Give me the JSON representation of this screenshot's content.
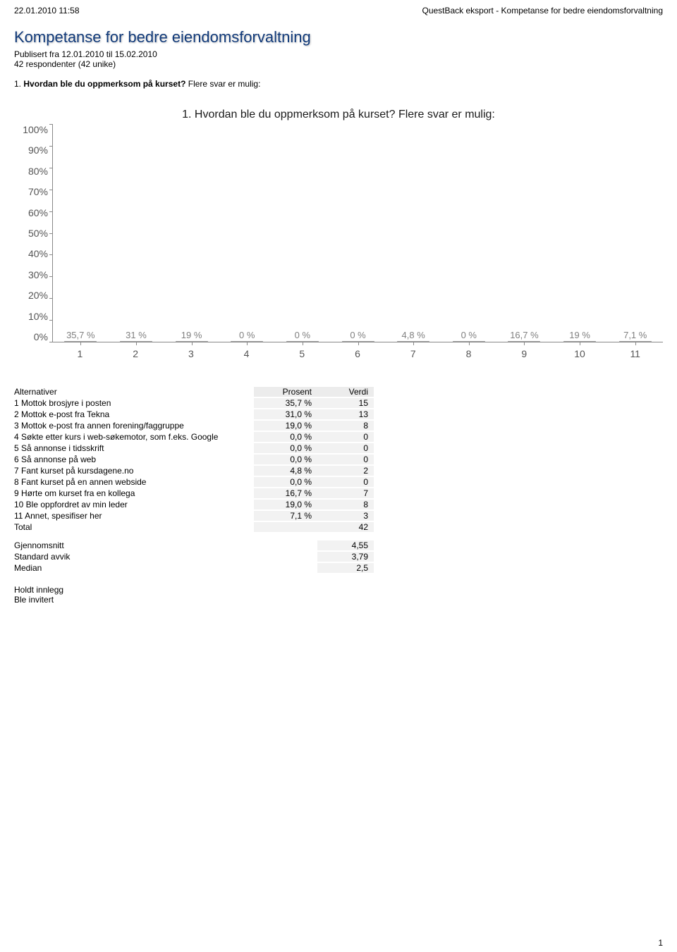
{
  "header": {
    "timestamp": "22.01.2010 11:58",
    "export_line": "QuestBack eksport - Kompetanse for bedre eiendomsforvaltning"
  },
  "title": "Kompetanse for bedre eiendomsforvaltning",
  "meta": {
    "published": "Publisert fra 12.01.2010 til 15.02.2010",
    "respondents": "42 respondenter (42 unike)"
  },
  "question": {
    "number": "1.",
    "bold": "Hvordan ble du oppmerksom på kurset?",
    "rest": " Flere svar er mulig:"
  },
  "chart": {
    "title": "1. Hvordan ble du oppmerksom på kurset? Flere svar er mulig:",
    "y_ticks": [
      "100%",
      "90%",
      "80%",
      "70%",
      "60%",
      "50%",
      "40%",
      "30%",
      "20%",
      "10%",
      "0%"
    ],
    "x_labels": [
      "1",
      "2",
      "3",
      "4",
      "5",
      "6",
      "7",
      "8",
      "9",
      "10",
      "11"
    ],
    "bars": [
      {
        "label": "35,7 %",
        "value": 35.7
      },
      {
        "label": "31 %",
        "value": 31.0
      },
      {
        "label": "19 %",
        "value": 19.0
      },
      {
        "label": "0 %",
        "value": 0.0
      },
      {
        "label": "0 %",
        "value": 0.0
      },
      {
        "label": "0 %",
        "value": 0.0
      },
      {
        "label": "4,8 %",
        "value": 4.8
      },
      {
        "label": "0 %",
        "value": 0.0
      },
      {
        "label": "16,7 %",
        "value": 16.7
      },
      {
        "label": "19 %",
        "value": 19.0
      },
      {
        "label": "7,1 %",
        "value": 7.1
      }
    ],
    "bar_fill_top": "#d0d0d0",
    "bar_fill_bottom": "#a8a8a8",
    "bar_border": "#9a9a9a",
    "axis_color": "#888888",
    "label_color": "#808080",
    "tick_label_color": "#555555",
    "background": "#ffffff"
  },
  "table": {
    "header": {
      "c1": "Alternativer",
      "c2": "Prosent",
      "c3": "Verdi"
    },
    "rows": [
      {
        "c1": "1 Mottok brosjyre i posten",
        "c2": "35,7 %",
        "c3": "15"
      },
      {
        "c1": "2 Mottok e-post fra Tekna",
        "c2": "31,0 %",
        "c3": "13"
      },
      {
        "c1": "3 Mottok e-post fra annen forening/faggruppe",
        "c2": "19,0 %",
        "c3": "8"
      },
      {
        "c1": "4 Søkte etter kurs i web-søkemotor, som f.eks. Google",
        "c2": "0,0 %",
        "c3": "0"
      },
      {
        "c1": "5 Så annonse i tidsskrift",
        "c2": "0,0 %",
        "c3": "0"
      },
      {
        "c1": "6 Så annonse på web",
        "c2": "0,0 %",
        "c3": "0"
      },
      {
        "c1": "7 Fant kurset på kursdagene.no",
        "c2": "4,8 %",
        "c3": "2"
      },
      {
        "c1": "8 Fant kurset på en annen webside",
        "c2": "0,0 %",
        "c3": "0"
      },
      {
        "c1": "9 Hørte om kurset fra en kollega",
        "c2": "16,7 %",
        "c3": "7"
      },
      {
        "c1": "10 Ble oppfordret av min leder",
        "c2": "19,0 %",
        "c3": "8"
      },
      {
        "c1": "11 Annet, spesifiser her",
        "c2": "7,1 %",
        "c3": "3"
      },
      {
        "c1": "Total",
        "c2": "",
        "c3": "42"
      }
    ],
    "stats": [
      {
        "c1": "Gjennomsnitt",
        "c3": "4,55"
      },
      {
        "c1": "Standard avvik",
        "c3": "3,79"
      },
      {
        "c1": "Median",
        "c3": "2,5"
      }
    ]
  },
  "freetext": [
    "Holdt innlegg",
    "Ble invitert"
  ],
  "page_number": "1"
}
